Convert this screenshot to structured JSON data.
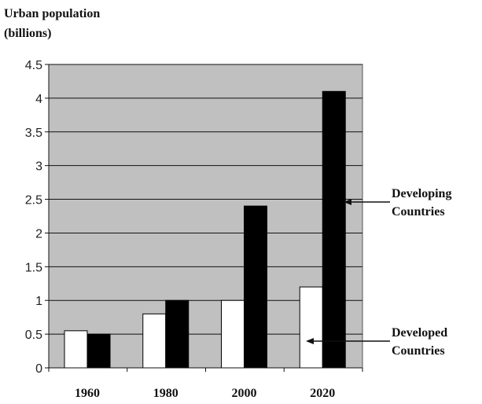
{
  "chart_data": {
    "type": "bar",
    "title": "",
    "ylabel_lines": [
      "Urban population",
      "(billions)"
    ],
    "xlabel": "",
    "categories": [
      "1960",
      "1980",
      "2000",
      "2020"
    ],
    "series": [
      {
        "name": "Developed Countries",
        "color": "#ffffff",
        "values": [
          0.55,
          0.8,
          1.0,
          1.2
        ]
      },
      {
        "name": "Developing Countries",
        "color": "#000000",
        "values": [
          0.5,
          1.0,
          2.4,
          4.1
        ]
      }
    ],
    "ylim": [
      0,
      4.5
    ],
    "yticks": [
      "0",
      "0.5",
      "1",
      "1.5",
      "2",
      "2.5",
      "3",
      "3.5",
      "4",
      "4.5"
    ],
    "grid": true,
    "plot_background": "#c0c0c0",
    "annotations": [
      {
        "series": 1,
        "lines": [
          "Developing",
          "Countries"
        ]
      },
      {
        "series": 0,
        "lines": [
          "Developed",
          "Countries"
        ]
      }
    ]
  }
}
